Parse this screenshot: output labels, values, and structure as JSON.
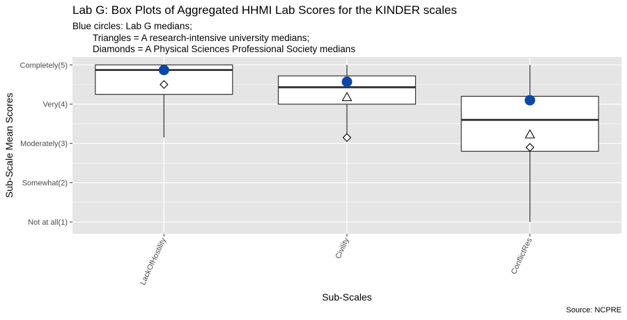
{
  "chart_data": {
    "type": "box",
    "title": "Lab G: Box Plots of Aggregated HHMI Lab Scores for the KINDER scales",
    "subtitle": [
      "Blue circles: Lab G medians;",
      "Triangles = A research-intensive university medians;",
      "Diamonds = A Physical Sciences Professional Society medians"
    ],
    "xlabel": "Sub-Scales",
    "ylabel": "Sub-Scale Mean Scores",
    "caption": "Source: NCPRE",
    "ylim": [
      0.7,
      5.2
    ],
    "y_ticks": [
      {
        "value": 1,
        "label": "Not at all(1)"
      },
      {
        "value": 2,
        "label": "Somewhat(2)"
      },
      {
        "value": 3,
        "label": "Moderately(3)"
      },
      {
        "value": 4,
        "label": "Very(4)"
      },
      {
        "value": 5,
        "label": "Completely(5)"
      }
    ],
    "categories": [
      "LackOfHostility",
      "Civility",
      "ConflictRes"
    ],
    "boxes": [
      {
        "category": "LackOfHostility",
        "min": 3.15,
        "q1": 4.25,
        "median": 4.87,
        "q3": 5.0,
        "max": 5.0
      },
      {
        "category": "Civility",
        "min": 3.15,
        "q1": 4.0,
        "median": 4.43,
        "q3": 4.72,
        "max": 5.0
      },
      {
        "category": "ConflictRes",
        "min": 1.0,
        "q1": 2.8,
        "median": 3.6,
        "q3": 4.2,
        "max": 5.0
      }
    ],
    "series": [
      {
        "marker": "circle",
        "values": [
          4.87,
          4.57,
          4.1
        ]
      },
      {
        "marker": "triangle",
        "values": [
          null,
          4.17,
          3.22
        ]
      },
      {
        "marker": "diamond",
        "values": [
          4.5,
          3.15,
          2.9
        ]
      }
    ],
    "colors": {
      "panel_background": "#e5e5e5",
      "grid": "#ffffff",
      "box_fill": "#ffffff",
      "box_stroke": "#333333",
      "lab_g_marker": "#0a47a9"
    },
    "grid": true,
    "legend": "none"
  }
}
